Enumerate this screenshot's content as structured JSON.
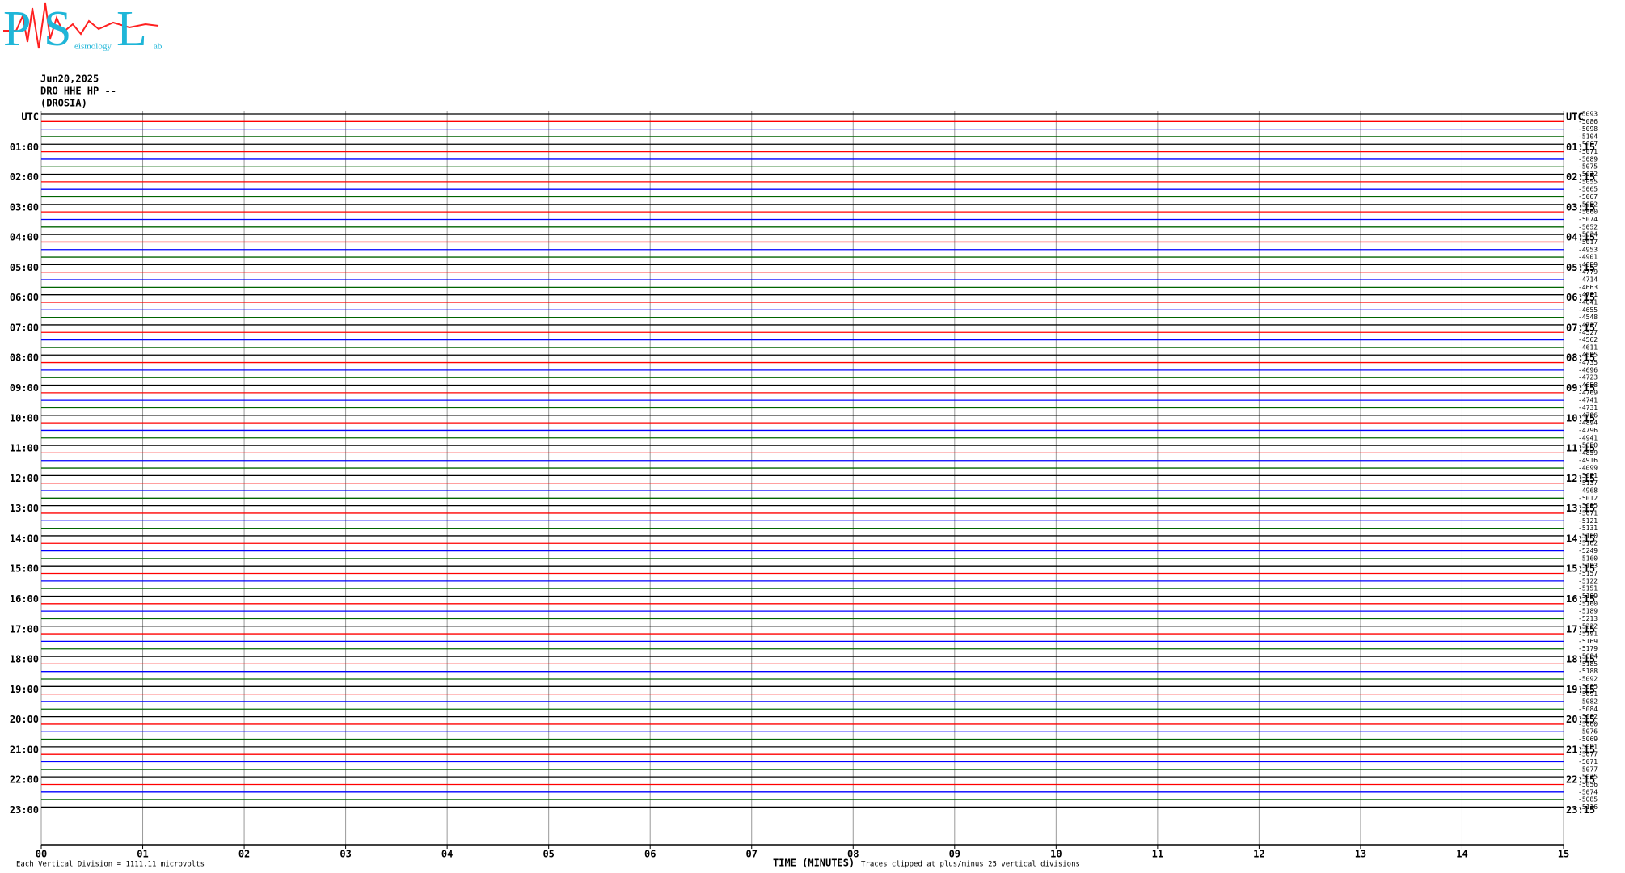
{
  "logo": {
    "p": "P",
    "s": "S",
    "l": "L",
    "middle": "eismology",
    "end": "ab"
  },
  "header": {
    "date": "Jun20,2025",
    "station": "DRO HHE HP --",
    "site": "(DROSIA)"
  },
  "chart_data": {
    "type": "helicorder",
    "xlabel": "TIME (MINUTES)",
    "xlim": [
      0,
      15
    ],
    "xticks": [
      {
        "value": 0,
        "label": "00"
      },
      {
        "value": 1,
        "label": "01"
      },
      {
        "value": 2,
        "label": "02"
      },
      {
        "value": 3,
        "label": "03"
      },
      {
        "value": 4,
        "label": "04"
      },
      {
        "value": 5,
        "label": "05"
      },
      {
        "value": 6,
        "label": "06"
      },
      {
        "value": 7,
        "label": "07"
      },
      {
        "value": 8,
        "label": "08"
      },
      {
        "value": 9,
        "label": "09"
      },
      {
        "value": 10,
        "label": "10"
      },
      {
        "value": 11,
        "label": "11"
      },
      {
        "value": 12,
        "label": "12"
      },
      {
        "value": 13,
        "label": "13"
      },
      {
        "value": 14,
        "label": "14"
      },
      {
        "value": 15,
        "label": "15"
      }
    ],
    "left_labels": [
      "UTC",
      "01:00",
      "02:00",
      "03:00",
      "04:00",
      "05:00",
      "06:00",
      "07:00",
      "08:00",
      "09:00",
      "10:00",
      "11:00",
      "12:00",
      "13:00",
      "14:00",
      "15:00",
      "16:00",
      "17:00",
      "18:00",
      "19:00",
      "20:00",
      "21:00",
      "22:00",
      "23:00"
    ],
    "right_labels": [
      "UTC",
      "01:15",
      "02:15",
      "03:15",
      "04:15",
      "05:15",
      "06:15",
      "07:15",
      "08:15",
      "09:15",
      "10:15",
      "11:15",
      "12:15",
      "13:15",
      "14:15",
      "15:15",
      "16:15",
      "17:15",
      "18:15",
      "19:15",
      "20:15",
      "21:15",
      "22:15",
      "23:15"
    ],
    "trace_colors": [
      "#000000",
      "#ff0000",
      "#0000ff",
      "#006400"
    ],
    "trace_offsets": [
      -5093,
      -5086,
      -5098,
      -5104,
      -5067,
      -5071,
      -5089,
      -5075,
      -5072,
      -5055,
      -5065,
      -5067,
      -5052,
      -5060,
      -5074,
      -5052,
      -5034,
      -5017,
      -4953,
      -4901,
      -4859,
      -4779,
      -4714,
      -4663,
      -4791,
      -4041,
      -4655,
      -4548,
      -4717,
      -4527,
      -4562,
      -4611,
      -4595,
      -4735,
      -4696,
      -4723,
      -4658,
      -4769,
      -4741,
      -4731,
      -4796,
      -4894,
      -4796,
      -4941,
      -5050,
      -4859,
      -4916,
      -4099,
      -5071,
      -5137,
      -4968,
      -5012,
      -5015,
      -5071,
      -5121,
      -5131,
      -5160,
      -5162,
      -5249,
      -5160,
      -5183,
      -5157,
      -5122,
      -5151,
      -5189,
      -5160,
      -5189,
      -5213,
      -5222,
      -5191,
      -5169,
      -5179,
      -5084,
      -5185,
      -5188,
      -5092,
      -5085,
      -5091,
      -5082,
      -5084,
      -5082,
      -5060,
      -5076,
      -5069,
      -5081,
      -5077,
      -5071,
      -5077,
      -5075,
      -5056,
      -5074,
      -5085,
      -5116
    ]
  },
  "footer": {
    "division": "Each Vertical Division = 1111.11 microvolts",
    "clip": "Traces clipped at plus/minus 25 vertical divisions"
  }
}
